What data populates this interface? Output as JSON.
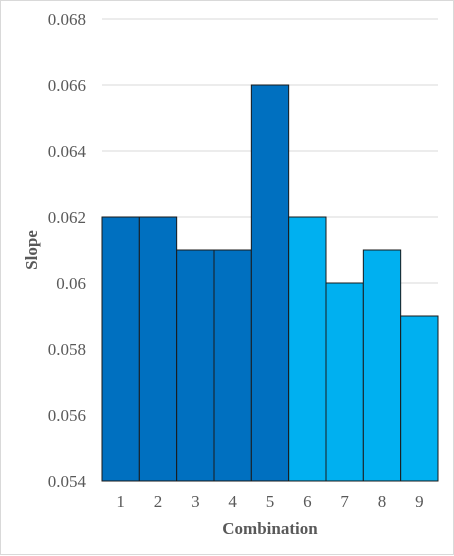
{
  "chart_data": {
    "type": "bar",
    "categories": [
      "1",
      "2",
      "3",
      "4",
      "5",
      "6",
      "7",
      "8",
      "9"
    ],
    "values": [
      0.062,
      0.062,
      0.061,
      0.061,
      0.066,
      0.062,
      0.06,
      0.061,
      0.059
    ],
    "xlabel": "Combination",
    "ylabel": "Slope",
    "ylim": [
      0.054,
      0.068
    ],
    "yticks": [
      "0.054",
      "0.056",
      "0.058",
      "0.06",
      "0.062",
      "0.064",
      "0.066",
      "0.068"
    ],
    "grid": true,
    "legend": "none",
    "colors": {
      "group_1_5": "#0070c0",
      "group_6_9": "#00b0f0",
      "bar_border": "#1a1a1a",
      "gridline": "#d9d9d9",
      "text": "#595959"
    }
  }
}
